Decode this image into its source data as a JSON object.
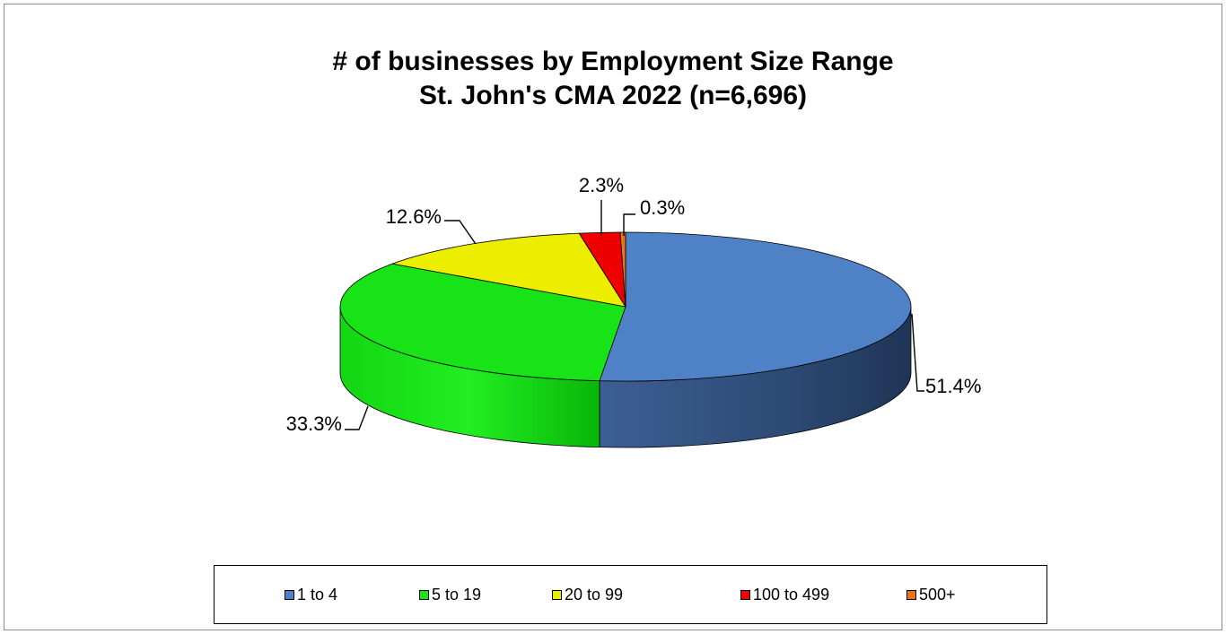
{
  "chart_data": {
    "type": "pie",
    "title": "# of businesses by Employment Size Range",
    "subtitle": "St. John's CMA 2022 (n=6,696)",
    "categories": [
      "1 to 4",
      "5 to 19",
      "20 to 99",
      "100 to 499",
      "500+"
    ],
    "values": [
      51.4,
      33.3,
      12.6,
      2.3,
      0.3
    ],
    "data_labels": [
      "51.4%",
      "33.3%",
      "12.6%",
      "2.3%",
      "0.3%"
    ],
    "colors": [
      "#4f81c6",
      "#17e317",
      "#eded00",
      "#ee0000",
      "#e8731a"
    ],
    "legend_position": "bottom",
    "style": "3d-pie"
  }
}
